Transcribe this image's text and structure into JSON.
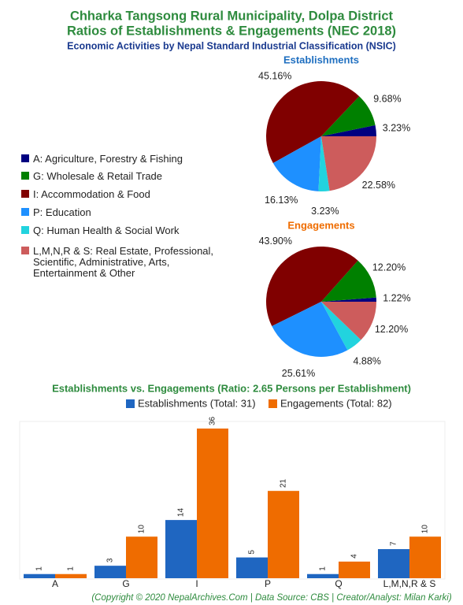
{
  "header": {
    "title": "Chharka Tangsong Rural Municipality, Dolpa District",
    "title2": "Ratios of Establishments & Engagements (NEC 2018)",
    "subtitle": "Economic Activities by Nepal Standard Industrial Classification (NSIC)"
  },
  "chart_data": [
    {
      "type": "pie",
      "title": "Establishments",
      "title_color": "#1f6fc0",
      "categories": [
        "A: Agriculture, Forestry & Fishing",
        "G: Wholesale & Retail Trade",
        "I: Accommodation & Food",
        "P: Education",
        "Q: Human Health & Social Work",
        "L,M,N,R & S: Real Estate, Professional, Scientific, Administrative, Arts, Entertainment & Other"
      ],
      "colors": [
        "#000080",
        "#008000",
        "#800000",
        "#1e90ff",
        "#22d3de",
        "#cd5c5c"
      ],
      "values": [
        3.23,
        9.68,
        45.16,
        16.13,
        3.23,
        22.58
      ],
      "value_labels": [
        "3.23%",
        "9.68%",
        "45.16%",
        "16.13%",
        "3.23%",
        "22.58%"
      ]
    },
    {
      "type": "pie",
      "title": "Engagements",
      "title_color": "#ef6c00",
      "colors": [
        "#000080",
        "#008000",
        "#800000",
        "#1e90ff",
        "#22d3de",
        "#cd5c5c"
      ],
      "values": [
        1.22,
        12.2,
        43.9,
        25.61,
        4.88,
        12.2
      ],
      "value_labels": [
        "1.22%",
        "12.20%",
        "43.90%",
        "25.61%",
        "4.88%",
        "12.20%"
      ]
    },
    {
      "type": "bar",
      "title": "Establishments vs. Engagements (Ratio: 2.65 Persons per Establishment)",
      "categories": [
        "A",
        "G",
        "I",
        "P",
        "Q",
        "L,M,N,R & S"
      ],
      "series": [
        {
          "name": "Establishments (Total: 31)",
          "color": "#1f66c1",
          "values": [
            1,
            3,
            14,
            5,
            1,
            7
          ]
        },
        {
          "name": "Engagements (Total: 82)",
          "color": "#ef6c00",
          "values": [
            1,
            10,
            36,
            21,
            4,
            10
          ]
        }
      ],
      "ylim": [
        0,
        36
      ]
    }
  ],
  "footer": "(Copyright © 2020 NepalArchives.Com | Data Source: CBS | Creator/Analyst: Milan Karki)"
}
